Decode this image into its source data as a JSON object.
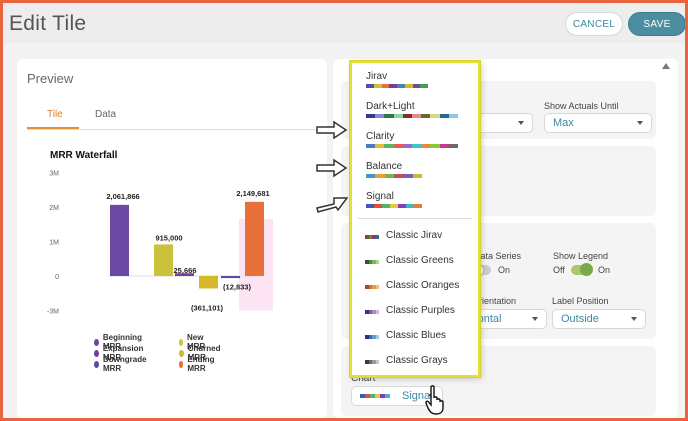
{
  "header": {
    "title": "Edit Tile",
    "cancel_label": "CANCEL",
    "save_label": "SAVE"
  },
  "preview": {
    "title": "Preview",
    "tabs": [
      {
        "label": "Tile",
        "active": true
      },
      {
        "label": "Data",
        "active": false
      }
    ]
  },
  "chart": {
    "title": "MRR Waterfall",
    "y_ticks": [
      "3M",
      "2M",
      "1M",
      "0",
      "-3M"
    ],
    "x_label": "Total",
    "legend": [
      {
        "label": "Beginning MRR",
        "color": "#6a4aa3"
      },
      {
        "label": "New MRR",
        "color": "#c9c23a"
      },
      {
        "label": "Expansion MRR",
        "color": "#7a3a9b"
      },
      {
        "label": "Churned MRR",
        "color": "#d6b82a"
      },
      {
        "label": "Downgrade MRR",
        "color": "#5a4aa8"
      },
      {
        "label": "Ending MRR",
        "color": "#e8703a"
      }
    ]
  },
  "chart_data": {
    "type": "bar",
    "title": "MRR Waterfall",
    "xlabel": "Total",
    "ylabel": "",
    "ylim": [
      -3000000,
      3000000
    ],
    "categories": [
      "Beginning MRR",
      "New MRR",
      "Expansion MRR",
      "Churned MRR",
      "Downgrade MRR",
      "Ending MRR"
    ],
    "values": [
      2061866,
      915000,
      25666,
      -361101,
      -12833,
      2149681
    ],
    "data_labels": [
      "2,061,866",
      "915,000",
      "25,666",
      "(361,101)",
      "(12,833)",
      "2,149,681"
    ],
    "colors": [
      "#6a4aa3",
      "#c9c23a",
      "#7a3a9b",
      "#d6b82a",
      "#5a4aa8",
      "#e8703a"
    ]
  },
  "settings": {
    "show_actuals_until_label": "Show Actuals Until",
    "show_actuals_until_value": "Max",
    "els_fragment": "els",
    "n_fragment": "n",
    "data_series_label": "Data Series",
    "data_series_value": "On",
    "show_legend_label": "Show Legend",
    "show_legend_off": "Off",
    "show_legend_on": "On",
    "orientation_label": "Orientation",
    "orientation_value": "rizontal",
    "label_position_label": "Label Position",
    "label_position_value": "Outside",
    "chart_label": "Chart",
    "chart_value": "Signal"
  },
  "palette_dropdown": {
    "options": [
      {
        "label": "Jirav",
        "colors": [
          "#5a4aa8",
          "#c9c23a",
          "#e8703a",
          "#7a3a9b",
          "#3a8aa0",
          "#d6b82a",
          "#6a4aa3",
          "#4a9a5a"
        ]
      },
      {
        "label": "Dark+Light",
        "colors": [
          "#3a3a8a",
          "#8a8ad8",
          "#2a7a4a",
          "#8ad8a0",
          "#8a2a2a",
          "#e88a8a",
          "#6a6a2a",
          "#d8d88a",
          "#2a6a8a",
          "#8ac8e8"
        ]
      },
      {
        "label": "Clarity",
        "colors": [
          "#4a7ac8",
          "#e8b83a",
          "#5ab85a",
          "#e85a5a",
          "#9a6ac8",
          "#3ac8c8",
          "#e88a3a",
          "#8ac83a",
          "#c83a8a",
          "#6a6a6a"
        ]
      },
      {
        "label": "Balance",
        "colors": [
          "#3a9ac8",
          "#e8a03a",
          "#6ab84a",
          "#c84a6a",
          "#7a5ab8",
          "#c8b83a"
        ]
      },
      {
        "label": "Signal",
        "colors": [
          "#3a5ab8",
          "#e84a3a",
          "#4ab86a",
          "#e8c83a",
          "#8a3ab8",
          "#3ab8c8",
          "#e87a3a"
        ]
      }
    ],
    "classic": [
      {
        "label": "Classic Jirav",
        "colors": [
          "#7a4a2a",
          "#5a8a3a",
          "#8a3a6a",
          "#3a6a8a"
        ]
      },
      {
        "label": "Classic Greens",
        "colors": [
          "#2a5a2a",
          "#4a8a3a",
          "#7ab85a",
          "#a8d88a"
        ]
      },
      {
        "label": "Classic Oranges",
        "colors": [
          "#a84a1a",
          "#d8702a",
          "#e89a4a",
          "#f0c07a"
        ]
      },
      {
        "label": "Classic Purples",
        "colors": [
          "#4a2a7a",
          "#7a5aa8",
          "#a88ac8",
          "#c8b8e0"
        ]
      },
      {
        "label": "Classic Blues",
        "colors": [
          "#1a3a7a",
          "#3a6aa8",
          "#6a9ad0",
          "#a8c8e8"
        ]
      },
      {
        "label": "Classic Grays",
        "colors": [
          "#3a3a3a",
          "#6a6a6a",
          "#9a9a9a",
          "#c8c8c8"
        ]
      }
    ]
  }
}
